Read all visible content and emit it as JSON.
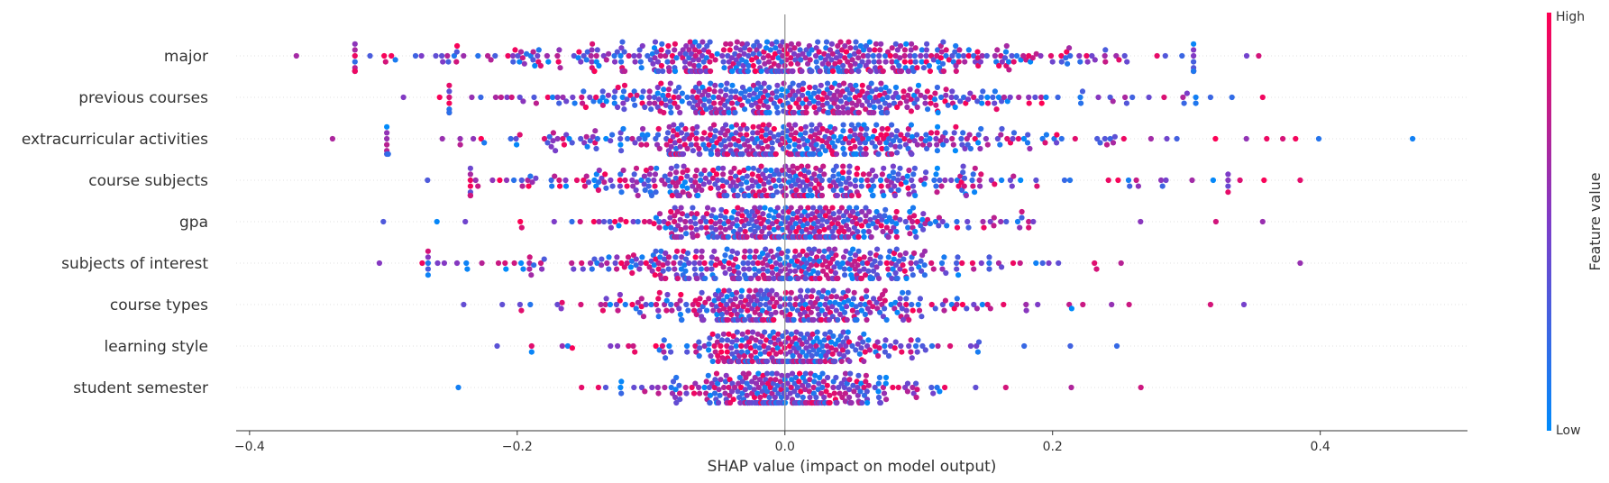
{
  "chart_data": {
    "type": "scatter",
    "subtype": "shap-beeswarm",
    "title": "",
    "xlabel": "SHAP value (impact on model output)",
    "xlim": [
      -0.41,
      0.51
    ],
    "xticks": [
      "−0.4",
      "−0.2",
      "0.0",
      "0.2",
      "0.4"
    ],
    "xtick_values": [
      -0.4,
      -0.2,
      0.0,
      0.2,
      0.4
    ],
    "features": [
      {
        "name": "major",
        "min": -0.365,
        "max": 0.355,
        "spread": 0.078,
        "count": 560,
        "outliers": [
          -0.365,
          -0.31,
          -0.294,
          -0.276,
          0.345,
          0.354
        ]
      },
      {
        "name": "previous courses",
        "min": -0.285,
        "max": 0.357,
        "spread": 0.07,
        "count": 470,
        "outliers": [
          -0.285,
          -0.258,
          0.318,
          0.334,
          0.357
        ]
      },
      {
        "name": "extracurricular activities",
        "min": -0.338,
        "max": 0.469,
        "spread": 0.07,
        "count": 500,
        "outliers": [
          -0.338,
          -0.256,
          0.36,
          0.372,
          0.469
        ]
      },
      {
        "name": "course subjects",
        "min": -0.267,
        "max": 0.385,
        "spread": 0.072,
        "count": 440,
        "outliers": [
          -0.267,
          0.34,
          0.358,
          0.385
        ]
      },
      {
        "name": "gpa",
        "min": -0.3,
        "max": 0.357,
        "spread": 0.045,
        "count": 440,
        "outliers": [
          -0.3,
          -0.26,
          0.322,
          0.357
        ]
      },
      {
        "name": "subjects of interest",
        "min": -0.303,
        "max": 0.385,
        "spread": 0.062,
        "count": 430,
        "outliers": [
          -0.303,
          -0.271,
          0.385
        ]
      },
      {
        "name": "course types",
        "min": -0.24,
        "max": 0.343,
        "spread": 0.045,
        "count": 380,
        "outliers": [
          -0.24,
          0.318,
          0.343
        ]
      },
      {
        "name": "learning style",
        "min": -0.215,
        "max": 0.248,
        "spread": 0.035,
        "count": 330,
        "outliers": [
          -0.215,
          0.248
        ]
      },
      {
        "name": "student semester",
        "min": -0.244,
        "max": 0.266,
        "spread": 0.032,
        "count": 330,
        "outliers": [
          -0.244,
          0.214,
          0.266
        ]
      }
    ],
    "colorbar": {
      "title": "Feature value",
      "high_label": "High",
      "low_label": "Low",
      "high_color": "#ff0052",
      "low_color": "#008bfb",
      "mid_color": "#7d3cc8"
    },
    "colors": {
      "axis": "#333333",
      "zero_line": "#999999",
      "row_grid": "#cccccc"
    },
    "grid": false
  }
}
